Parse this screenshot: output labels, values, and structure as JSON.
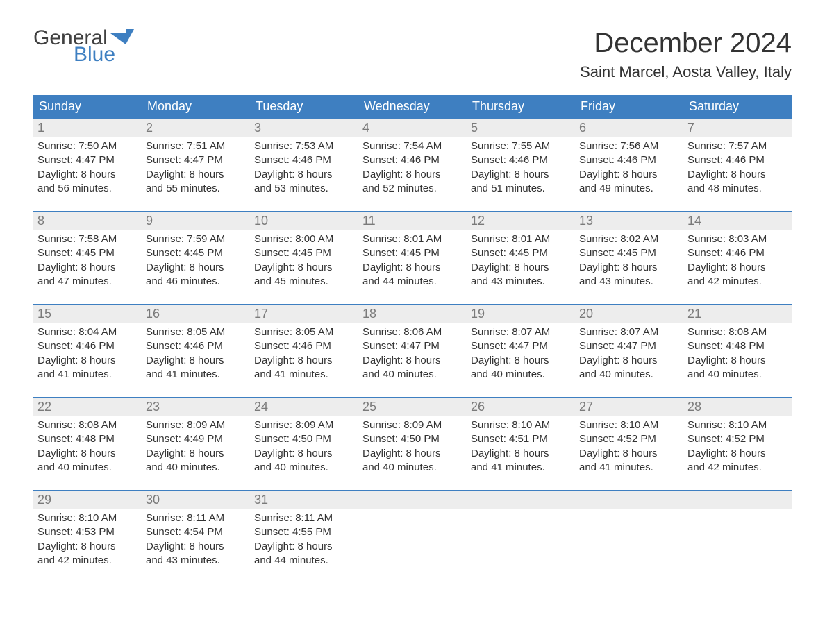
{
  "logo": {
    "text1": "General",
    "text2": "Blue"
  },
  "title": "December 2024",
  "location": "Saint Marcel, Aosta Valley, Italy",
  "colors": {
    "header_bg": "#3e7fc1",
    "header_text": "#ffffff",
    "daynum_bg": "#ededed",
    "daynum_text": "#7a7a7a",
    "body_text": "#333333",
    "logo_gray": "#404040",
    "logo_blue": "#3e7fc1",
    "background": "#ffffff",
    "week_border": "#3e7fc1"
  },
  "typography": {
    "title_fontsize": 40,
    "location_fontsize": 22,
    "dayheader_fontsize": 18,
    "daynum_fontsize": 18,
    "cell_fontsize": 15,
    "logo_fontsize": 30
  },
  "layout": {
    "columns": 7,
    "rows": 5
  },
  "day_headers": [
    "Sunday",
    "Monday",
    "Tuesday",
    "Wednesday",
    "Thursday",
    "Friday",
    "Saturday"
  ],
  "weeks": [
    {
      "days": [
        {
          "num": "1",
          "sunrise": "Sunrise: 7:50 AM",
          "sunset": "Sunset: 4:47 PM",
          "d1": "Daylight: 8 hours",
          "d2": "and 56 minutes."
        },
        {
          "num": "2",
          "sunrise": "Sunrise: 7:51 AM",
          "sunset": "Sunset: 4:47 PM",
          "d1": "Daylight: 8 hours",
          "d2": "and 55 minutes."
        },
        {
          "num": "3",
          "sunrise": "Sunrise: 7:53 AM",
          "sunset": "Sunset: 4:46 PM",
          "d1": "Daylight: 8 hours",
          "d2": "and 53 minutes."
        },
        {
          "num": "4",
          "sunrise": "Sunrise: 7:54 AM",
          "sunset": "Sunset: 4:46 PM",
          "d1": "Daylight: 8 hours",
          "d2": "and 52 minutes."
        },
        {
          "num": "5",
          "sunrise": "Sunrise: 7:55 AM",
          "sunset": "Sunset: 4:46 PM",
          "d1": "Daylight: 8 hours",
          "d2": "and 51 minutes."
        },
        {
          "num": "6",
          "sunrise": "Sunrise: 7:56 AM",
          "sunset": "Sunset: 4:46 PM",
          "d1": "Daylight: 8 hours",
          "d2": "and 49 minutes."
        },
        {
          "num": "7",
          "sunrise": "Sunrise: 7:57 AM",
          "sunset": "Sunset: 4:46 PM",
          "d1": "Daylight: 8 hours",
          "d2": "and 48 minutes."
        }
      ]
    },
    {
      "days": [
        {
          "num": "8",
          "sunrise": "Sunrise: 7:58 AM",
          "sunset": "Sunset: 4:45 PM",
          "d1": "Daylight: 8 hours",
          "d2": "and 47 minutes."
        },
        {
          "num": "9",
          "sunrise": "Sunrise: 7:59 AM",
          "sunset": "Sunset: 4:45 PM",
          "d1": "Daylight: 8 hours",
          "d2": "and 46 minutes."
        },
        {
          "num": "10",
          "sunrise": "Sunrise: 8:00 AM",
          "sunset": "Sunset: 4:45 PM",
          "d1": "Daylight: 8 hours",
          "d2": "and 45 minutes."
        },
        {
          "num": "11",
          "sunrise": "Sunrise: 8:01 AM",
          "sunset": "Sunset: 4:45 PM",
          "d1": "Daylight: 8 hours",
          "d2": "and 44 minutes."
        },
        {
          "num": "12",
          "sunrise": "Sunrise: 8:01 AM",
          "sunset": "Sunset: 4:45 PM",
          "d1": "Daylight: 8 hours",
          "d2": "and 43 minutes."
        },
        {
          "num": "13",
          "sunrise": "Sunrise: 8:02 AM",
          "sunset": "Sunset: 4:45 PM",
          "d1": "Daylight: 8 hours",
          "d2": "and 43 minutes."
        },
        {
          "num": "14",
          "sunrise": "Sunrise: 8:03 AM",
          "sunset": "Sunset: 4:46 PM",
          "d1": "Daylight: 8 hours",
          "d2": "and 42 minutes."
        }
      ]
    },
    {
      "days": [
        {
          "num": "15",
          "sunrise": "Sunrise: 8:04 AM",
          "sunset": "Sunset: 4:46 PM",
          "d1": "Daylight: 8 hours",
          "d2": "and 41 minutes."
        },
        {
          "num": "16",
          "sunrise": "Sunrise: 8:05 AM",
          "sunset": "Sunset: 4:46 PM",
          "d1": "Daylight: 8 hours",
          "d2": "and 41 minutes."
        },
        {
          "num": "17",
          "sunrise": "Sunrise: 8:05 AM",
          "sunset": "Sunset: 4:46 PM",
          "d1": "Daylight: 8 hours",
          "d2": "and 41 minutes."
        },
        {
          "num": "18",
          "sunrise": "Sunrise: 8:06 AM",
          "sunset": "Sunset: 4:47 PM",
          "d1": "Daylight: 8 hours",
          "d2": "and 40 minutes."
        },
        {
          "num": "19",
          "sunrise": "Sunrise: 8:07 AM",
          "sunset": "Sunset: 4:47 PM",
          "d1": "Daylight: 8 hours",
          "d2": "and 40 minutes."
        },
        {
          "num": "20",
          "sunrise": "Sunrise: 8:07 AM",
          "sunset": "Sunset: 4:47 PM",
          "d1": "Daylight: 8 hours",
          "d2": "and 40 minutes."
        },
        {
          "num": "21",
          "sunrise": "Sunrise: 8:08 AM",
          "sunset": "Sunset: 4:48 PM",
          "d1": "Daylight: 8 hours",
          "d2": "and 40 minutes."
        }
      ]
    },
    {
      "days": [
        {
          "num": "22",
          "sunrise": "Sunrise: 8:08 AM",
          "sunset": "Sunset: 4:48 PM",
          "d1": "Daylight: 8 hours",
          "d2": "and 40 minutes."
        },
        {
          "num": "23",
          "sunrise": "Sunrise: 8:09 AM",
          "sunset": "Sunset: 4:49 PM",
          "d1": "Daylight: 8 hours",
          "d2": "and 40 minutes."
        },
        {
          "num": "24",
          "sunrise": "Sunrise: 8:09 AM",
          "sunset": "Sunset: 4:50 PM",
          "d1": "Daylight: 8 hours",
          "d2": "and 40 minutes."
        },
        {
          "num": "25",
          "sunrise": "Sunrise: 8:09 AM",
          "sunset": "Sunset: 4:50 PM",
          "d1": "Daylight: 8 hours",
          "d2": "and 40 minutes."
        },
        {
          "num": "26",
          "sunrise": "Sunrise: 8:10 AM",
          "sunset": "Sunset: 4:51 PM",
          "d1": "Daylight: 8 hours",
          "d2": "and 41 minutes."
        },
        {
          "num": "27",
          "sunrise": "Sunrise: 8:10 AM",
          "sunset": "Sunset: 4:52 PM",
          "d1": "Daylight: 8 hours",
          "d2": "and 41 minutes."
        },
        {
          "num": "28",
          "sunrise": "Sunrise: 8:10 AM",
          "sunset": "Sunset: 4:52 PM",
          "d1": "Daylight: 8 hours",
          "d2": "and 42 minutes."
        }
      ]
    },
    {
      "days": [
        {
          "num": "29",
          "sunrise": "Sunrise: 8:10 AM",
          "sunset": "Sunset: 4:53 PM",
          "d1": "Daylight: 8 hours",
          "d2": "and 42 minutes."
        },
        {
          "num": "30",
          "sunrise": "Sunrise: 8:11 AM",
          "sunset": "Sunset: 4:54 PM",
          "d1": "Daylight: 8 hours",
          "d2": "and 43 minutes."
        },
        {
          "num": "31",
          "sunrise": "Sunrise: 8:11 AM",
          "sunset": "Sunset: 4:55 PM",
          "d1": "Daylight: 8 hours",
          "d2": "and 44 minutes."
        },
        {
          "empty": true
        },
        {
          "empty": true
        },
        {
          "empty": true
        },
        {
          "empty": true
        }
      ]
    }
  ]
}
